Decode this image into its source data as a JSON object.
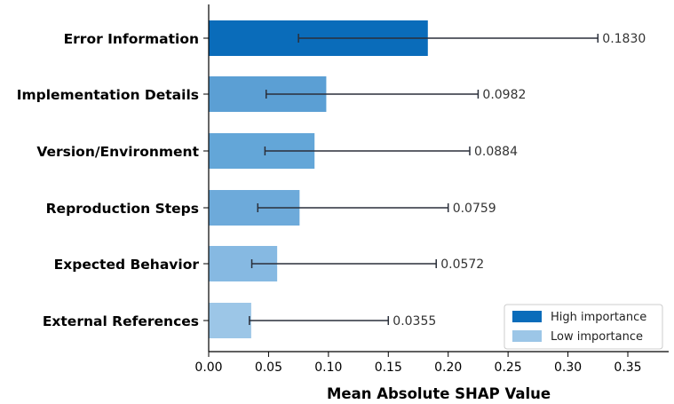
{
  "chart_data": {
    "type": "bar",
    "orientation": "horizontal",
    "categories": [
      "Error Information",
      "Implementation Details",
      "Version/Environment",
      "Reproduction Steps",
      "Expected Behavior",
      "External References"
    ],
    "values": [
      0.183,
      0.0982,
      0.0884,
      0.0759,
      0.0572,
      0.0355
    ],
    "value_labels": [
      "0.1830",
      "0.0982",
      "0.0884",
      "0.0759",
      "0.0572",
      "0.0355"
    ],
    "error_low": [
      0.075,
      0.048,
      0.047,
      0.041,
      0.036,
      0.034
    ],
    "error_high": [
      0.325,
      0.225,
      0.218,
      0.2,
      0.19,
      0.15
    ],
    "bar_colors": [
      "#0a6cba",
      "#5b9fd4",
      "#63a6d8",
      "#6daada",
      "#86b9e2",
      "#9cc6e7"
    ],
    "xlabel": "Mean Absolute SHAP Value",
    "xlim": [
      0.0,
      0.385
    ],
    "xticks": [
      0.0,
      0.05,
      0.1,
      0.15,
      0.2,
      0.25,
      0.3,
      0.35
    ],
    "xtick_labels": [
      "0.00",
      "0.05",
      "0.10",
      "0.15",
      "0.20",
      "0.25",
      "0.30",
      "0.35"
    ],
    "grid": false,
    "legend": {
      "position": "lower-right",
      "entries": [
        {
          "label": "High importance",
          "color": "#0a6cba"
        },
        {
          "label": "Low importance",
          "color": "#9cc6e7"
        }
      ]
    }
  }
}
